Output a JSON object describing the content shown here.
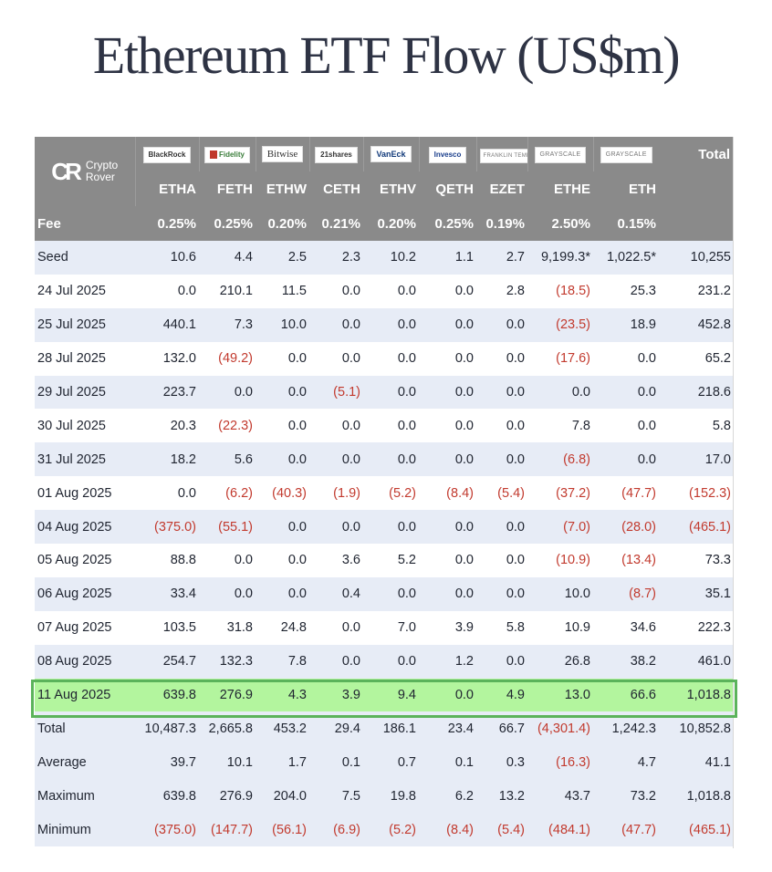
{
  "title": "Ethereum ETF Flow (US$m)",
  "brand": {
    "mark": "CR",
    "name_line1": "Crypto",
    "name_line2": "Rover"
  },
  "issuers": [
    "BlackRock",
    "Fidelity",
    "Bitwise",
    "21shares",
    "VanEck",
    "Invesco",
    "FRANKLIN TEMPLETON",
    "GRAYSCALE",
    "GRAYSCALE"
  ],
  "total_label": "Total",
  "tickers": [
    "ETHA",
    "FETH",
    "ETHW",
    "CETH",
    "ETHV",
    "QETH",
    "EZET",
    "ETHE",
    "ETH"
  ],
  "fee_label": "Fee",
  "fees": [
    "0.25%",
    "0.25%",
    "0.20%",
    "0.21%",
    "0.20%",
    "0.25%",
    "0.19%",
    "2.50%",
    "0.15%"
  ],
  "rows": [
    {
      "label": "Seed",
      "values": [
        "10.6",
        "4.4",
        "2.5",
        "2.3",
        "10.2",
        "1.1",
        "2.7",
        "9,199.3*",
        "1,022.5*",
        "10,255"
      ]
    },
    {
      "label": "24 Jul 2025",
      "values": [
        "0.0",
        "210.1",
        "11.5",
        "0.0",
        "0.0",
        "0.0",
        "2.8",
        "(18.5)",
        "25.3",
        "231.2"
      ]
    },
    {
      "label": "25 Jul 2025",
      "values": [
        "440.1",
        "7.3",
        "10.0",
        "0.0",
        "0.0",
        "0.0",
        "0.0",
        "(23.5)",
        "18.9",
        "452.8"
      ]
    },
    {
      "label": "28 Jul 2025",
      "values": [
        "132.0",
        "(49.2)",
        "0.0",
        "0.0",
        "0.0",
        "0.0",
        "0.0",
        "(17.6)",
        "0.0",
        "65.2"
      ]
    },
    {
      "label": "29 Jul 2025",
      "values": [
        "223.7",
        "0.0",
        "0.0",
        "(5.1)",
        "0.0",
        "0.0",
        "0.0",
        "0.0",
        "0.0",
        "218.6"
      ]
    },
    {
      "label": "30 Jul 2025",
      "values": [
        "20.3",
        "(22.3)",
        "0.0",
        "0.0",
        "0.0",
        "0.0",
        "0.0",
        "7.8",
        "0.0",
        "5.8"
      ]
    },
    {
      "label": "31 Jul 2025",
      "values": [
        "18.2",
        "5.6",
        "0.0",
        "0.0",
        "0.0",
        "0.0",
        "0.0",
        "(6.8)",
        "0.0",
        "17.0"
      ]
    },
    {
      "label": "01 Aug 2025",
      "values": [
        "0.0",
        "(6.2)",
        "(40.3)",
        "(1.9)",
        "(5.2)",
        "(8.4)",
        "(5.4)",
        "(37.2)",
        "(47.7)",
        "(152.3)"
      ]
    },
    {
      "label": "04 Aug 2025",
      "values": [
        "(375.0)",
        "(55.1)",
        "0.0",
        "0.0",
        "0.0",
        "0.0",
        "0.0",
        "(7.0)",
        "(28.0)",
        "(465.1)"
      ]
    },
    {
      "label": "05 Aug 2025",
      "values": [
        "88.8",
        "0.0",
        "0.0",
        "3.6",
        "5.2",
        "0.0",
        "0.0",
        "(10.9)",
        "(13.4)",
        "73.3"
      ]
    },
    {
      "label": "06 Aug 2025",
      "values": [
        "33.4",
        "0.0",
        "0.0",
        "0.4",
        "0.0",
        "0.0",
        "0.0",
        "10.0",
        "(8.7)",
        "35.1"
      ]
    },
    {
      "label": "07 Aug 2025",
      "values": [
        "103.5",
        "31.8",
        "24.8",
        "0.0",
        "7.0",
        "3.9",
        "5.8",
        "10.9",
        "34.6",
        "222.3"
      ]
    },
    {
      "label": "08 Aug 2025",
      "values": [
        "254.7",
        "132.3",
        "7.8",
        "0.0",
        "0.0",
        "1.2",
        "0.0",
        "26.8",
        "38.2",
        "461.0"
      ]
    },
    {
      "label": "11 Aug 2025",
      "values": [
        "639.8",
        "276.9",
        "4.3",
        "3.9",
        "9.4",
        "0.0",
        "4.9",
        "13.0",
        "66.6",
        "1,018.8"
      ],
      "highlight": true
    }
  ],
  "summary_rows": [
    {
      "label": "Total",
      "values": [
        "10,487.3",
        "2,665.8",
        "453.2",
        "29.4",
        "186.1",
        "23.4",
        "66.7",
        "(4,301.4)",
        "1,242.3",
        "10,852.8"
      ]
    },
    {
      "label": "Average",
      "values": [
        "39.7",
        "10.1",
        "1.7",
        "0.1",
        "0.7",
        "0.1",
        "0.3",
        "(16.3)",
        "4.7",
        "41.1"
      ]
    },
    {
      "label": "Maximum",
      "values": [
        "639.8",
        "276.9",
        "204.0",
        "7.5",
        "19.8",
        "6.2",
        "13.2",
        "43.7",
        "73.2",
        "1,018.8"
      ]
    },
    {
      "label": "Minimum",
      "values": [
        "(375.0)",
        "(147.7)",
        "(56.1)",
        "(6.9)",
        "(5.2)",
        "(8.4)",
        "(5.4)",
        "(484.1)",
        "(47.7)",
        "(465.1)"
      ]
    }
  ],
  "colors": {
    "header_bg": "#8a8a8a",
    "stripe": "#e7ecf6",
    "highlight": "#b3f59e",
    "highlight_border": "#5bb35b",
    "negative": "#c23a2e"
  }
}
